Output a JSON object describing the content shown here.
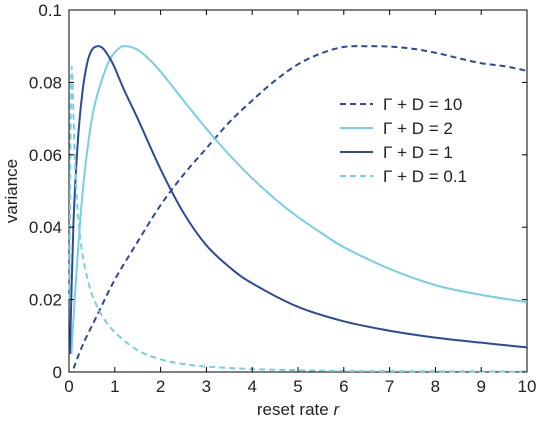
{
  "chart_data": {
    "type": "line",
    "title": "",
    "xlabel": "reset rate",
    "xlabel_var": "r",
    "ylabel": "variance",
    "xlim": [
      0,
      10
    ],
    "ylim": [
      0,
      0.1
    ],
    "x_ticks": [
      0,
      1,
      2,
      3,
      4,
      5,
      6,
      7,
      8,
      9,
      10
    ],
    "x_tick_labels": [
      "0",
      "1",
      "2",
      "3",
      "4",
      "5",
      "6",
      "7",
      "8",
      "9",
      "10"
    ],
    "y_ticks": [
      0,
      0.02,
      0.04,
      0.06,
      0.08,
      0.1
    ],
    "y_tick_labels": [
      "0",
      "0.02",
      "0.04",
      "0.06",
      "0.08",
      "0.1"
    ],
    "grid": false,
    "legend_position": "right",
    "series": [
      {
        "name": "Γ + D = 10",
        "color": "#2b4a9b",
        "dashed": true,
        "x": [
          0.1,
          0.3,
          0.6,
          1.0,
          1.5,
          2.0,
          2.5,
          3.0,
          3.5,
          4.0,
          4.5,
          5.0,
          5.5,
          6.0,
          6.5,
          7.0,
          7.5,
          8.0,
          8.5,
          9.0,
          9.5,
          10.0
        ],
        "y": [
          0.001,
          0.0075,
          0.0153,
          0.0255,
          0.036,
          0.0461,
          0.0545,
          0.0618,
          0.069,
          0.075,
          0.0805,
          0.085,
          0.088,
          0.0898,
          0.09,
          0.0899,
          0.0893,
          0.0882,
          0.0867,
          0.0853,
          0.0845,
          0.0832
        ]
      },
      {
        "name": "Γ + D = 2",
        "color": "#76cfe2",
        "dashed": false,
        "x": [
          0.05,
          0.15,
          0.3,
          0.5,
          0.7,
          0.9,
          1.1,
          1.25,
          1.5,
          1.75,
          2.0,
          2.5,
          3.0,
          3.5,
          4.0,
          4.5,
          5.0,
          5.5,
          6.0,
          7.0,
          8.0,
          9.0,
          10.0
        ],
        "y": [
          0.005,
          0.025,
          0.05,
          0.07,
          0.08,
          0.0865,
          0.0895,
          0.09,
          0.089,
          0.0864,
          0.083,
          0.075,
          0.0672,
          0.06,
          0.0535,
          0.0478,
          0.0428,
          0.0385,
          0.0345,
          0.0285,
          0.024,
          0.0213,
          0.0193
        ]
      },
      {
        "name": "Γ + D = 1",
        "color": "#2b4a9b",
        "dashed": false,
        "x": [
          0.02,
          0.1,
          0.2,
          0.3,
          0.4,
          0.5,
          0.62,
          0.75,
          0.9,
          1.0,
          1.2,
          1.5,
          2.0,
          2.5,
          3.0,
          3.5,
          4.0,
          5.0,
          6.0,
          7.0,
          8.0,
          9.0,
          10.0
        ],
        "y": [
          0.005,
          0.042,
          0.065,
          0.078,
          0.0855,
          0.089,
          0.09,
          0.0893,
          0.0865,
          0.084,
          0.078,
          0.07,
          0.056,
          0.044,
          0.035,
          0.029,
          0.0245,
          0.018,
          0.014,
          0.0114,
          0.0095,
          0.0081,
          0.0068
        ]
      },
      {
        "name": "Γ + D = 0.1",
        "color": "#76cfe2",
        "dashed": true,
        "x": [
          0.01,
          0.03,
          0.05,
          0.065,
          0.08,
          0.1,
          0.13,
          0.17,
          0.22,
          0.3,
          0.4,
          0.5,
          0.7,
          1.0,
          1.5,
          2.0,
          2.5,
          3.0,
          4.0,
          5.0,
          6.0,
          8.0,
          10.0
        ],
        "y": [
          0.02,
          0.06,
          0.082,
          0.0835,
          0.08,
          0.07,
          0.058,
          0.048,
          0.04,
          0.032,
          0.026,
          0.0215,
          0.016,
          0.011,
          0.006,
          0.0035,
          0.0022,
          0.0015,
          0.0008,
          0.0005,
          0.0003,
          0.0002,
          0.0001
        ]
      }
    ]
  }
}
